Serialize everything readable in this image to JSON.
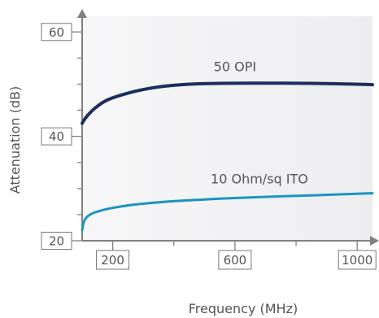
{
  "chart_data": {
    "type": "line",
    "title": "",
    "xlabel": "Frequency (MHz)",
    "ylabel": "Attenuation (dB)",
    "xlim": [
      100,
      1050
    ],
    "ylim": [
      20,
      63
    ],
    "x_ticks": [
      "200",
      "600",
      "1000"
    ],
    "y_ticks": [
      "20",
      "40",
      "60"
    ],
    "grid": false,
    "series": [
      {
        "name": "50 OPI",
        "color": "#1b2f5c",
        "x": [
          100,
          110,
          130,
          150,
          175,
          200,
          250,
          300,
          350,
          400,
          450,
          500,
          600,
          700,
          800,
          900,
          1000,
          1050
        ],
        "y": [
          42.5,
          43.5,
          44.8,
          45.8,
          46.8,
          47.4,
          48.3,
          49.0,
          49.5,
          49.8,
          50.0,
          50.1,
          50.2,
          50.2,
          50.2,
          50.1,
          50.0,
          49.9
        ]
      },
      {
        "name": "10 Ohm/sq ITO",
        "color": "#1a95c0",
        "x": [
          100,
          104,
          110,
          120,
          135,
          150,
          175,
          200,
          250,
          300,
          400,
          500,
          600,
          700,
          800,
          900,
          1000,
          1050
        ],
        "y": [
          22.0,
          23.4,
          24.2,
          24.8,
          25.3,
          25.6,
          26.0,
          26.3,
          26.8,
          27.1,
          27.6,
          27.9,
          28.2,
          28.4,
          28.6,
          28.8,
          29.0,
          29.1
        ]
      }
    ],
    "annotations": [
      {
        "text": "50 OPI",
        "x": 600,
        "y": 52.5
      },
      {
        "text": "10 Ohm/sq ITO",
        "x": 680,
        "y": 31
      }
    ]
  }
}
